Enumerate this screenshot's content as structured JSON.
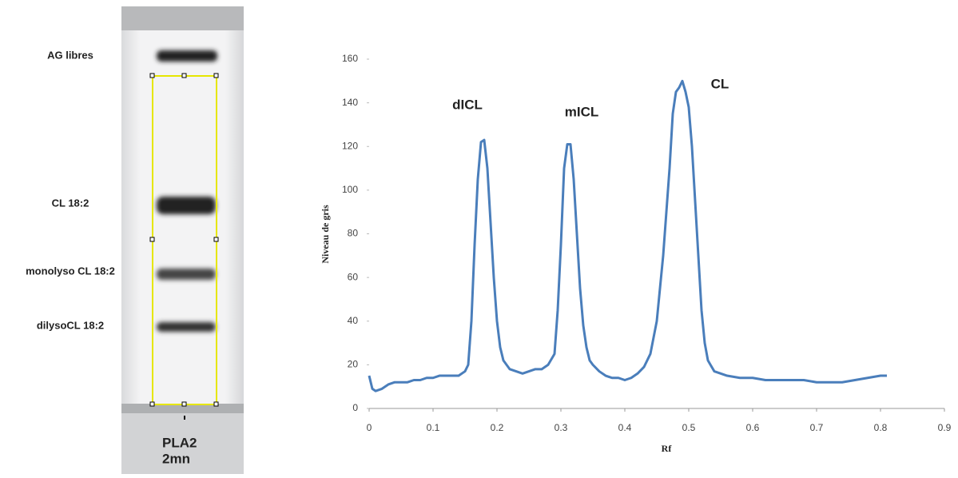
{
  "plate": {
    "bands": [
      "AG libres",
      "CL 18:2",
      "monolyso CL 18:2",
      "dilysoCL 18:2"
    ],
    "lane": [
      "PLA2",
      "2mn"
    ]
  },
  "chart_data": {
    "type": "line",
    "x_label": "Rf",
    "y_label": "Niveau de gris",
    "annotations": [
      "dICL",
      "mICL",
      "CL"
    ],
    "color": "#4a7ebb",
    "x": [
      0,
      0.005,
      0.01,
      0.02,
      0.03,
      0.04,
      0.05,
      0.06,
      0.07,
      0.08,
      0.09,
      0.1,
      0.11,
      0.12,
      0.13,
      0.14,
      0.15,
      0.155,
      0.16,
      0.165,
      0.17,
      0.175,
      0.18,
      0.185,
      0.19,
      0.195,
      0.2,
      0.205,
      0.21,
      0.22,
      0.23,
      0.24,
      0.25,
      0.26,
      0.27,
      0.28,
      0.29,
      0.295,
      0.3,
      0.305,
      0.31,
      0.315,
      0.32,
      0.325,
      0.33,
      0.335,
      0.34,
      0.345,
      0.35,
      0.36,
      0.37,
      0.38,
      0.39,
      0.4,
      0.41,
      0.42,
      0.43,
      0.44,
      0.45,
      0.46,
      0.47,
      0.475,
      0.48,
      0.485,
      0.49,
      0.495,
      0.5,
      0.505,
      0.51,
      0.515,
      0.52,
      0.525,
      0.53,
      0.54,
      0.55,
      0.56,
      0.58,
      0.6,
      0.62,
      0.64,
      0.66,
      0.68,
      0.7,
      0.72,
      0.74,
      0.76,
      0.78,
      0.8,
      0.81
    ],
    "values": [
      15,
      9,
      8,
      9,
      11,
      12,
      12,
      12,
      13,
      13,
      14,
      14,
      15,
      15,
      15,
      15,
      17,
      20,
      40,
      75,
      105,
      122,
      123,
      110,
      85,
      60,
      40,
      28,
      22,
      18,
      17,
      16,
      17,
      18,
      18,
      20,
      25,
      45,
      75,
      110,
      121,
      121,
      105,
      80,
      55,
      38,
      28,
      22,
      20,
      17,
      15,
      14,
      14,
      13,
      14,
      16,
      19,
      25,
      40,
      70,
      110,
      135,
      145,
      147,
      150,
      145,
      138,
      120,
      95,
      70,
      45,
      30,
      22,
      17,
      16,
      15,
      14,
      14,
      13,
      13,
      13,
      13,
      12,
      12,
      12,
      13,
      14,
      15,
      15
    ],
    "xlim": [
      0,
      0.9
    ],
    "xticks": [
      0,
      0.1,
      0.2,
      0.3,
      0.4,
      0.5,
      0.6,
      0.7,
      0.8,
      0.9
    ],
    "ylim": [
      0,
      160
    ],
    "yticks": [
      0,
      20,
      40,
      60,
      80,
      100,
      120,
      140,
      160
    ]
  }
}
